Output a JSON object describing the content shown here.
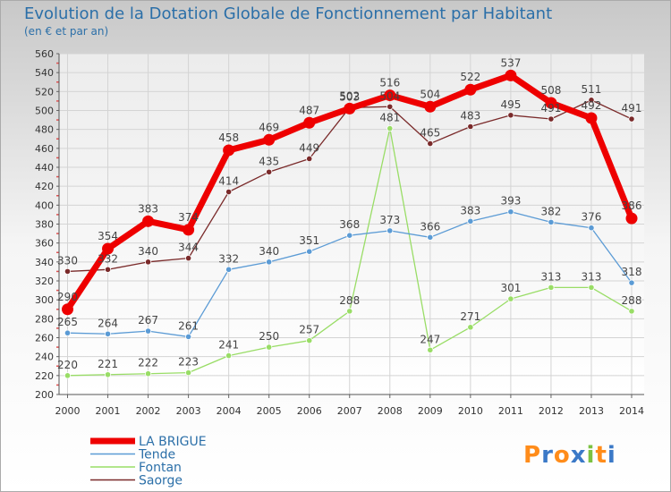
{
  "chart_data": {
    "type": "line",
    "title": "Evolution de la Dotation Globale de Fonctionnement par Habitant",
    "subtitle": "(en € et par an)",
    "xlabel": "",
    "ylabel": "",
    "x": [
      "2000",
      "2001",
      "2002",
      "2003",
      "2004",
      "2005",
      "2006",
      "2007",
      "2008",
      "2009",
      "2010",
      "2011",
      "2012",
      "2013",
      "2014"
    ],
    "ylim": [
      200,
      560
    ],
    "ytick_step": 20,
    "grid": true,
    "legend_position": "bottom-left",
    "series": [
      {
        "name": "LA BRIGUE",
        "color": "#ee0000",
        "emphasis": true,
        "values": [
          290,
          354,
          383,
          374,
          458,
          469,
          487,
          502,
          516,
          504,
          522,
          537,
          508,
          492,
          386
        ],
        "labels": [
          "290",
          "354",
          "383",
          "374",
          "458",
          "469",
          "487",
          "502",
          "516",
          "504",
          "522",
          "537",
          "508",
          "492",
          "386"
        ]
      },
      {
        "name": "Tende",
        "color": "#5b9bd5",
        "emphasis": false,
        "values": [
          265,
          264,
          267,
          261,
          332,
          340,
          351,
          368,
          373,
          366,
          383,
          393,
          382,
          376,
          318
        ],
        "labels": [
          "265",
          "264",
          "267",
          "261",
          "332",
          "340",
          "351",
          "368",
          "373",
          "366",
          "383",
          "393",
          "382",
          "376",
          "318"
        ]
      },
      {
        "name": "Fontan",
        "color": "#99dd66",
        "emphasis": false,
        "values": [
          220,
          221,
          222,
          223,
          241,
          250,
          257,
          288,
          481,
          247,
          271,
          301,
          313,
          313,
          288
        ],
        "labels": [
          "220",
          "221",
          "222",
          "223",
          "241",
          "250",
          "257",
          "288",
          "481",
          "247",
          "271",
          "301",
          "313",
          "313",
          "288"
        ]
      },
      {
        "name": "Saorge",
        "color": "#7a2a2a",
        "emphasis": false,
        "values": [
          330,
          332,
          340,
          344,
          414,
          435,
          449,
          503,
          504,
          465,
          483,
          495,
          491,
          511,
          491
        ],
        "labels": [
          "330",
          "332",
          "340",
          "344",
          "414",
          "435",
          "449",
          "503",
          "504",
          "465",
          "483",
          "495",
          "491",
          "511",
          "491"
        ]
      }
    ],
    "brand": "Proxiti"
  }
}
